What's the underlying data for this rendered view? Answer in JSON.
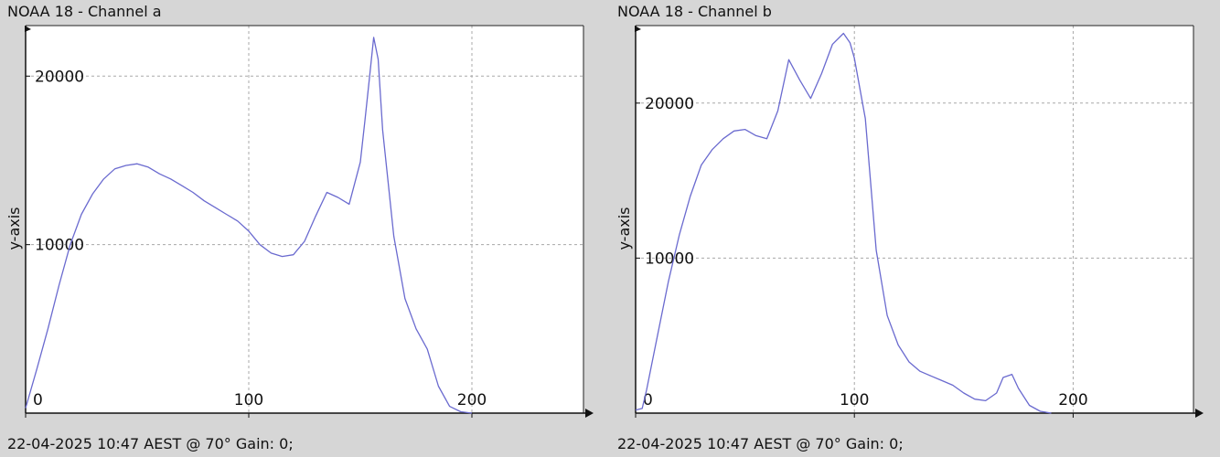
{
  "chart_data": [
    {
      "type": "line",
      "title": "NOAA 18 - Channel a",
      "footer": "22-04-2025 10:47 AEST @ 70° Gain: 0;",
      "xlabel": "",
      "ylabel": "y-axis",
      "xlim": [
        0,
        250
      ],
      "ylim": [
        0,
        23000
      ],
      "xticks": [
        0,
        100,
        200
      ],
      "yticks": [
        10000,
        20000
      ],
      "grid": true,
      "line_color": "#6a6acf",
      "series": [
        {
          "x": [
            0,
            5,
            10,
            15,
            20,
            25,
            30,
            35,
            40,
            45,
            50,
            55,
            60,
            65,
            70,
            75,
            80,
            85,
            90,
            95,
            100,
            105,
            110,
            115,
            120,
            125,
            130,
            135,
            140,
            145,
            150,
            152,
            154,
            156,
            158,
            160,
            165,
            170,
            175,
            180,
            185,
            190,
            195,
            200
          ],
          "y": [
            300,
            2600,
            5000,
            7600,
            10000,
            11800,
            13000,
            13900,
            14500,
            14700,
            14800,
            14600,
            14200,
            13900,
            13500,
            13100,
            12600,
            12200,
            11800,
            11400,
            10800,
            10000,
            9500,
            9300,
            9400,
            10200,
            11700,
            13100,
            12800,
            12400,
            14900,
            17300,
            19800,
            22300,
            21000,
            16800,
            10500,
            6800,
            5000,
            3800,
            1600,
            400,
            80,
            0
          ]
        }
      ]
    },
    {
      "type": "line",
      "title": "NOAA 18 - Channel b",
      "footer": "22-04-2025 10:47 AEST @ 70° Gain: 0;",
      "xlabel": "",
      "ylabel": "y-axis",
      "xlim": [
        0,
        255
      ],
      "ylim": [
        0,
        25000
      ],
      "xticks": [
        0,
        100,
        200
      ],
      "yticks": [
        10000,
        20000
      ],
      "grid": true,
      "line_color": "#6a6acf",
      "series": [
        {
          "x": [
            0,
            3,
            5,
            10,
            15,
            20,
            25,
            30,
            35,
            40,
            45,
            50,
            55,
            60,
            65,
            70,
            75,
            80,
            85,
            90,
            95,
            98,
            100,
            105,
            110,
            115,
            120,
            125,
            130,
            135,
            140,
            145,
            150,
            155,
            160,
            165,
            168,
            172,
            175,
            180,
            185,
            190
          ],
          "y": [
            200,
            300,
            1500,
            5000,
            8500,
            11500,
            14000,
            16000,
            17000,
            17700,
            18200,
            18300,
            17900,
            17700,
            19500,
            22800,
            21500,
            20300,
            21900,
            23800,
            24500,
            23900,
            22900,
            19000,
            10500,
            6300,
            4400,
            3300,
            2700,
            2400,
            2100,
            1800,
            1300,
            900,
            800,
            1300,
            2300,
            2500,
            1600,
            500,
            120,
            0
          ]
        }
      ]
    }
  ]
}
